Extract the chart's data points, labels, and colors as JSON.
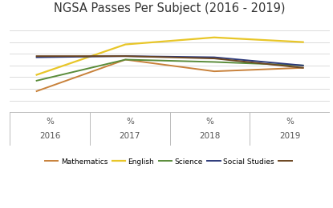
{
  "title": "NGSA Passes Per Subject (2016 - 2019)",
  "years": [
    2016,
    2017,
    2018,
    2019
  ],
  "series": {
    "Mathematics": {
      "values": [
        28,
        55,
        45,
        48
      ],
      "color": "#c8813a",
      "linewidth": 1.4
    },
    "English": {
      "values": [
        42,
        68,
        74,
        70
      ],
      "color": "#e8c628",
      "linewidth": 1.6
    },
    "Science": {
      "values": [
        37,
        55,
        53,
        50
      ],
      "color": "#5a8c3a",
      "linewidth": 1.4
    },
    "Social Studies": {
      "values": [
        57,
        58,
        57,
        50
      ],
      "color": "#2d3a7a",
      "linewidth": 1.4
    },
    "Unknown": {
      "values": [
        58,
        58,
        56,
        48
      ],
      "color": "#6b4520",
      "linewidth": 1.4
    }
  },
  "xtick_labels": [
    "2016",
    "2017",
    "2018",
    "2019"
  ],
  "background_color": "#ffffff",
  "grid_color": "#d5d5d5",
  "title_fontsize": 10.5,
  "tick_fontsize": 7.5,
  "ylim": [
    10,
    90
  ],
  "yticks": [
    20,
    30,
    40,
    50,
    60,
    70,
    80
  ],
  "legend_labels": [
    "Mathematics",
    "English",
    "Science",
    "Social Studies",
    ""
  ],
  "table_border_color": "#bbbbbb",
  "text_color": "#555555"
}
